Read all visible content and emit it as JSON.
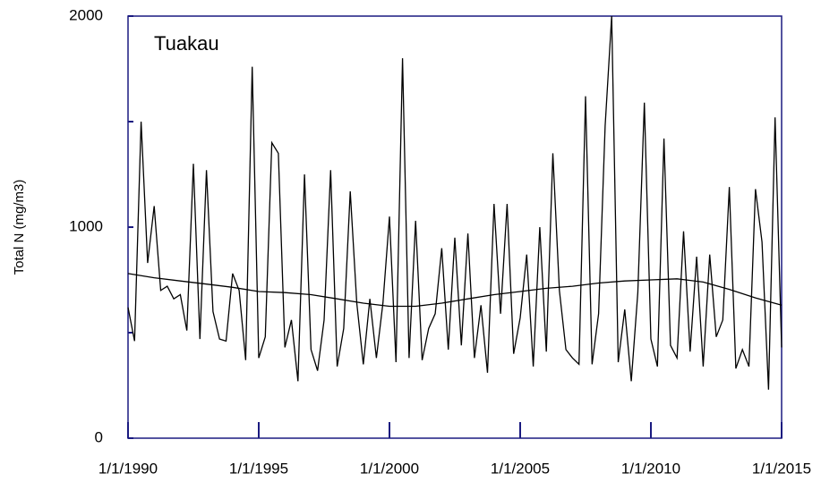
{
  "chart_data": {
    "type": "line",
    "y_label": "Total N (mg/m3)",
    "annotation": "Tuakau",
    "axis_color": "#1a1a80",
    "xlim": [
      1990,
      2015
    ],
    "xticks": [
      {
        "value": 1990,
        "label": "1/1/1990"
      },
      {
        "value": 1995,
        "label": "1/1/1995"
      },
      {
        "value": 2000,
        "label": "1/1/2000"
      },
      {
        "value": 2005,
        "label": "1/1/2005"
      },
      {
        "value": 2010,
        "label": "1/1/2010"
      },
      {
        "value": 2015,
        "label": "1/1/2015"
      }
    ],
    "ylim": [
      0,
      2000
    ],
    "yticks": [
      0,
      1000,
      2000
    ],
    "yminor_ticks": [
      500,
      1500
    ],
    "x": [
      1990,
      1990.25,
      1990.5,
      1990.75,
      1991,
      1991.25,
      1991.5,
      1991.75,
      1992,
      1992.25,
      1992.5,
      1992.75,
      1993,
      1993.25,
      1993.5,
      1993.75,
      1994,
      1994.25,
      1994.5,
      1994.75,
      1995,
      1995.25,
      1995.5,
      1995.75,
      1996,
      1996.25,
      1996.5,
      1996.75,
      1997,
      1997.25,
      1997.5,
      1997.75,
      1998,
      1998.25,
      1998.5,
      1998.75,
      1999,
      1999.25,
      1999.5,
      1999.75,
      2000,
      2000.25,
      2000.5,
      2000.75,
      2001,
      2001.25,
      2001.5,
      2001.75,
      2002,
      2002.25,
      2002.5,
      2002.75,
      2003,
      2003.25,
      2003.5,
      2003.75,
      2004,
      2004.25,
      2004.5,
      2004.75,
      2005,
      2005.25,
      2005.5,
      2005.75,
      2006,
      2006.25,
      2006.5,
      2006.75,
      2007,
      2007.25,
      2007.5,
      2007.75,
      2008,
      2008.25,
      2008.5,
      2008.75,
      2009,
      2009.25,
      2009.5,
      2009.75,
      2010,
      2010.25,
      2010.5,
      2010.75,
      2011,
      2011.25,
      2011.5,
      2011.75,
      2012,
      2012.25,
      2012.5,
      2012.75,
      2013,
      2013.25,
      2013.5,
      2013.75,
      2014,
      2014.25,
      2014.5,
      2014.75,
      2015
    ],
    "series": [
      {
        "color": "#000000",
        "values": [
          620,
          460,
          1500,
          830,
          1100,
          700,
          720,
          660,
          680,
          510,
          1300,
          470,
          1270,
          600,
          470,
          460,
          780,
          700,
          370,
          1760,
          380,
          480,
          1400,
          1350,
          430,
          560,
          270,
          1250,
          420,
          320,
          560,
          1270,
          340,
          520,
          1170,
          640,
          350,
          660,
          380,
          640,
          1050,
          360,
          1800,
          380,
          1030,
          370,
          520,
          590,
          900,
          420,
          950,
          440,
          970,
          380,
          630,
          310,
          1110,
          590,
          1110,
          400,
          570,
          870,
          340,
          1000,
          410,
          1350,
          700,
          420,
          380,
          350,
          1620,
          350,
          590,
          1480,
          2000,
          360,
          610,
          270,
          690,
          1590,
          470,
          340,
          1420,
          440,
          380,
          980,
          410,
          860,
          340,
          870,
          480,
          560,
          1190,
          330,
          420,
          340,
          1180,
          930,
          230,
          1520,
          430
        ]
      }
    ],
    "trend": {
      "color": "#000000",
      "x": [
        1990,
        1991,
        1992,
        1993,
        1994,
        1995,
        1996,
        1997,
        1998,
        1999,
        2000,
        2001,
        2002,
        2003,
        2004,
        2005,
        2006,
        2007,
        2008,
        2009,
        2010,
        2011,
        2012,
        2013,
        2014,
        2015
      ],
      "values": [
        780,
        760,
        745,
        730,
        715,
        695,
        690,
        680,
        660,
        640,
        625,
        625,
        640,
        660,
        680,
        695,
        710,
        720,
        735,
        745,
        750,
        755,
        740,
        705,
        665,
        630
      ]
    }
  }
}
